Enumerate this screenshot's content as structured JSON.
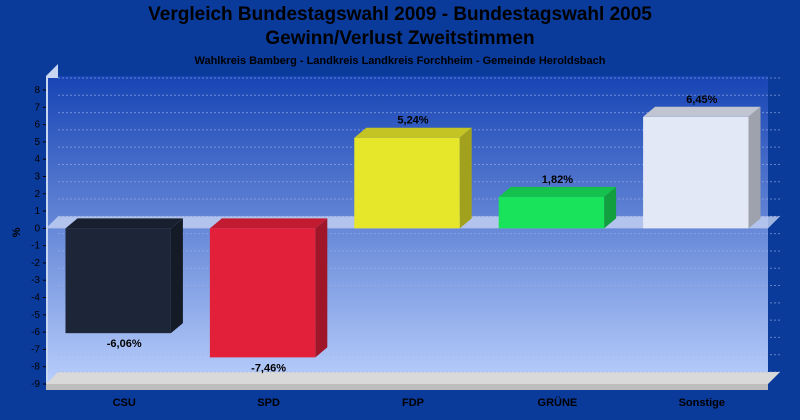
{
  "header": {
    "title_line1": "Vergleich Bundestagswahl 2009 - Bundestagswahl 2005",
    "title_line2": "Gewinn/Verlust Zweitstimmen",
    "subtitle": "Wahlkreis Bamberg - Landkreis Landkreis Forchheim - Gemeinde Heroldsbach"
  },
  "chart_data": {
    "type": "bar",
    "title": "Vergleich Bundestagswahl 2009 - Bundestagswahl 2005 Gewinn/Verlust Zweitstimmen",
    "subtitle": "Wahlkreis Bamberg - Landkreis Landkreis Forchheim - Gemeinde Heroldsbach",
    "xlabel": "",
    "ylabel": "%",
    "ylim": [
      -9,
      8
    ],
    "yticks": [
      8,
      7,
      6,
      5,
      4,
      3,
      2,
      1,
      0,
      -1,
      -2,
      -3,
      -4,
      -5,
      -6,
      -7,
      -8,
      -9
    ],
    "grid": true,
    "categories": [
      "CSU",
      "SPD",
      "FDP",
      "GRÜNE",
      "Sonstige"
    ],
    "values": [
      -6.06,
      -7.46,
      5.24,
      1.82,
      6.45
    ],
    "value_labels": [
      "-6,06%",
      "-7,46%",
      "5,24%",
      "1,82%",
      "6,45%"
    ],
    "colors": [
      "#1c2638",
      "#e3203a",
      "#e6e62a",
      "#19e35a",
      "#e2e8f6"
    ]
  }
}
